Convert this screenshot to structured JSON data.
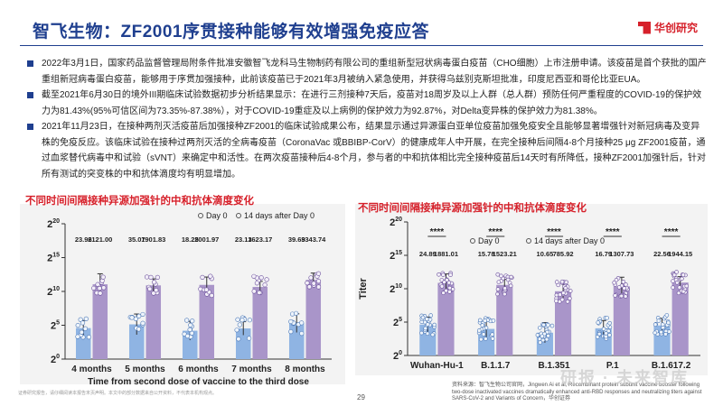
{
  "header": {
    "title": "智飞生物：ZF2001序贯接种能够有效增强免疫应答",
    "logo_text": "华创研究",
    "brand_color": "#1f3f8f",
    "accent_color": "#d6202a"
  },
  "bullets": [
    "2022年3月1日，国家药品监督管理局附条件批准安徽智飞龙科马生物制药有限公司的重组新型冠状病毒蛋白疫苗（CHO细胞）上市注册申请。该疫苗是首个获批的国产重组新冠病毒蛋白疫苗，能够用于序贯加强接种，此前该疫苗已于2021年3月被纳入紧急使用，并获得乌兹别克斯坦批准，印度尼西亚和哥伦比亚EUA。",
    "截至2021年6月30日的境外III期临床试验数据初步分析结果显示：在进行三剂接种7天后，疫苗对18周岁及以上人群（总人群）预防任何严重程度的COVID-19的保护效力为81.43%(95%可信区间为73.35%-87.38%），对于COVID-19重症及以上病例的保护效力为92.87%，对Delta变异株的保护效力为81.38%。",
    "2021年11月23日，在接种两剂灭活疫苗后加强接种ZF2001的临床试验成果公布，结果显示通过异源蛋白亚单位疫苗加强免疫安全且能够显著增强针对新冠病毒及变异株的免疫反应。该临床试验在接种过两剂灭活的全病毒疫苗（CoronaVac 或BBIBP-CorV）的健康成年人中开展，在完全接种后间隔4-8个月接种25 μg ZF2001疫苗，通过血浆替代病毒中和试验（sVNT）来确定中和活性。在两次疫苗接种后4-8个月，参与者的中和抗体相比完全接种疫苗后14天时有所降低，接种ZF2001加强针后，针对所有测试的突变株的中和抗体滴度均有明显增加。"
  ],
  "charts": [
    {
      "title": "不同时间间隔接种异源加强针的中和抗体滴度变化",
      "legend": [
        "Day 0",
        "14 days after Day 0"
      ],
      "chart_data": {
        "type": "bar",
        "title": "不同时间间隔接种异源加强针的中和抗体滴度变化",
        "xlabel": "Time from second dose of vaccine to the third dose",
        "ylabel": "",
        "y_scale": "log2",
        "ylim": [
          0,
          20
        ],
        "y_ticks": [
          "2^0",
          "2^5",
          "2^10",
          "2^15",
          "2^20"
        ],
        "categories": [
          "4 months",
          "5 months",
          "6 months",
          "7 months",
          "8 months"
        ],
        "series": [
          {
            "name": "Day 0",
            "color": "#8fb4e3",
            "values": [
              23.96,
              35.07,
              18.25,
              23.13,
              39.69
            ]
          },
          {
            "name": "14 days after Day 0",
            "color": "#a995c9",
            "values": [
              2121.0,
              1901.83,
              2001.97,
              1623.17,
              3343.74
            ]
          }
        ]
      }
    },
    {
      "title": "不同时间间隔接种异源加强针的中和抗体滴度变化",
      "legend": [
        "Day 0",
        "14 days after Day 0"
      ],
      "significance": "****",
      "chart_data": {
        "type": "bar",
        "title": "不同时间间隔接种异源加强针的中和抗体滴度变化",
        "xlabel": "",
        "ylabel": "Titer",
        "y_scale": "log2",
        "ylim": [
          0,
          20
        ],
        "y_ticks": [
          "2^0",
          "2^5",
          "2^10",
          "2^15",
          "2^20"
        ],
        "categories": [
          "Wuhan-Hu-1",
          "B.1.1.7",
          "B.1.351",
          "P.1",
          "B.1.617.2"
        ],
        "series": [
          {
            "name": "Day 0",
            "color": "#8fb4e3",
            "values": [
              24.89,
              15.78,
              10.65,
              16.79,
              22.56
            ]
          },
          {
            "name": "14 days after Day 0",
            "color": "#a995c9",
            "values": [
              1881.01,
              1523.21,
              785.92,
              1307.73,
              1944.15
            ]
          }
        ]
      }
    }
  ],
  "footer": {
    "disclaimer": "证券研究报告，请仔细阅读本报告末页声明。本文中的部分数据来自公开资料，不代表本机构观点。",
    "page": "29",
    "source": "资料来源：智飞生物公司官网，Jingwen Ai et al, Recombinant protein subunit vaccine booster following two-dose inactivated vaccines dramatically enhanced anti-RBD responses and neutralizing titers against SARS-CoV-2 and Variants of Concern，华创证券",
    "watermark": "研报 · 未来智库"
  }
}
